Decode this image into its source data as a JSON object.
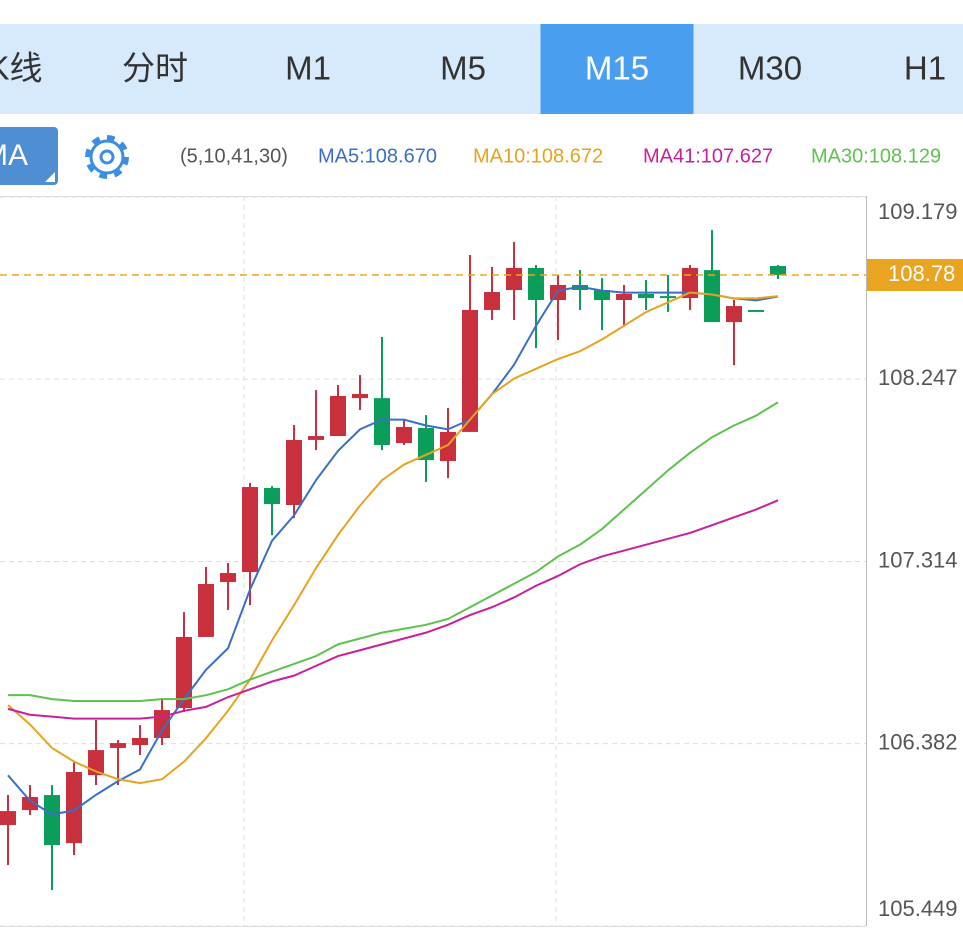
{
  "tabs": [
    "K线",
    "分时",
    "M1",
    "M5",
    "M15",
    "M30",
    "H1"
  ],
  "selected_tab": "M15",
  "indicator_button": "MA",
  "indicator_params": "(5,10,41,30)",
  "chart_data": {
    "type": "candlestick",
    "open": [
      105.966,
      106.042,
      106.119,
      105.873,
      106.221,
      106.36,
      106.375,
      106.411,
      106.564,
      106.928,
      107.209,
      107.26,
      107.69,
      107.603,
      107.936,
      107.956,
      108.15,
      108.15,
      107.92,
      107.997,
      107.828,
      107.977,
      108.601,
      108.703,
      108.816,
      108.652,
      108.729,
      108.703,
      108.652,
      108.683,
      108.672,
      108.662,
      108.805,
      108.539,
      108.601,
      108.826
    ],
    "high": [
      106.119,
      106.17,
      106.17,
      106.288,
      106.503,
      106.4,
      106.477,
      106.615,
      107.055,
      107.286,
      107.306,
      107.716,
      107.7,
      108.012,
      108.191,
      108.217,
      108.268,
      108.463,
      108.038,
      108.063,
      108.099,
      108.882,
      108.821,
      108.949,
      108.831,
      108.78,
      108.805,
      108.764,
      108.729,
      108.754,
      108.78,
      108.831,
      109.01,
      108.652,
      108.601,
      108.831
    ],
    "low": [
      105.761,
      106.017,
      105.633,
      105.812,
      106.17,
      106.17,
      106.324,
      106.375,
      106.544,
      106.928,
      107.066,
      107.091,
      107.449,
      107.536,
      107.884,
      107.956,
      108.089,
      107.884,
      107.91,
      107.721,
      107.741,
      107.977,
      108.55,
      108.55,
      108.406,
      108.447,
      108.601,
      108.498,
      108.524,
      108.601,
      108.591,
      108.601,
      108.539,
      108.319,
      108.591,
      108.759
    ],
    "close": [
      106.037,
      106.109,
      105.863,
      106.237,
      106.349,
      106.385,
      106.411,
      106.554,
      106.928,
      107.199,
      107.255,
      107.695,
      107.608,
      107.936,
      107.956,
      108.161,
      108.171,
      107.91,
      108.002,
      107.833,
      107.977,
      108.601,
      108.693,
      108.816,
      108.652,
      108.729,
      108.703,
      108.652,
      108.683,
      108.662,
      108.662,
      108.816,
      108.539,
      108.621,
      108.591,
      108.78
    ],
    "up_color": "#c7303c",
    "down_color": "#0b9e5a",
    "series": [
      {
        "name": "MA5:108.670",
        "color": "#3b6fc6",
        "values": [
          106.22,
          106.09,
          106.02,
          106.04,
          106.12,
          106.19,
          106.25,
          106.45,
          106.61,
          106.76,
          106.87,
          107.17,
          107.42,
          107.55,
          107.73,
          107.88,
          107.99,
          108.04,
          108.04,
          108.01,
          107.99,
          108.04,
          108.17,
          108.32,
          108.52,
          108.7,
          108.72,
          108.7,
          108.69,
          108.69,
          108.69,
          108.69,
          108.68,
          108.66,
          108.65,
          108.67
        ]
      },
      {
        "name": "MA10:108.672",
        "color": "#e8a21e",
        "values": [
          106.58,
          106.48,
          106.36,
          106.29,
          106.24,
          106.2,
          106.18,
          106.2,
          106.29,
          106.41,
          106.55,
          106.71,
          106.91,
          107.09,
          107.28,
          107.45,
          107.6,
          107.73,
          107.81,
          107.86,
          107.91,
          108.04,
          108.17,
          108.25,
          108.3,
          108.35,
          108.39,
          108.45,
          108.52,
          108.59,
          108.64,
          108.69,
          108.68,
          108.66,
          108.66,
          108.672
        ]
      },
      {
        "name": "MA41:107.627",
        "color": "#c81f9e",
        "values": [
          106.56,
          106.53,
          106.52,
          106.51,
          106.51,
          106.51,
          106.51,
          106.52,
          106.55,
          106.57,
          106.62,
          106.66,
          106.7,
          106.73,
          106.78,
          106.83,
          106.86,
          106.89,
          106.92,
          106.95,
          106.99,
          107.04,
          107.08,
          107.13,
          107.19,
          107.24,
          107.3,
          107.34,
          107.37,
          107.4,
          107.43,
          107.46,
          107.5,
          107.54,
          107.58,
          107.627
        ]
      },
      {
        "name": "MA30:108.129",
        "color": "#5ec24e",
        "values": [
          106.63,
          106.63,
          106.61,
          106.6,
          106.6,
          106.6,
          106.6,
          106.61,
          106.61,
          106.63,
          106.66,
          106.71,
          106.75,
          106.79,
          106.83,
          106.89,
          106.92,
          106.95,
          106.97,
          106.99,
          107.02,
          107.08,
          107.14,
          107.2,
          107.26,
          107.34,
          107.4,
          107.48,
          107.58,
          107.68,
          107.78,
          107.87,
          107.95,
          108.01,
          108.06,
          108.129
        ]
      }
    ],
    "ylim": [
      105.449,
      109.179
    ],
    "yticks": [
      105.449,
      106.382,
      107.314,
      108.247,
      109.179
    ],
    "grid": true,
    "last_price": 108.78,
    "last_price_color": "#eaa520"
  }
}
